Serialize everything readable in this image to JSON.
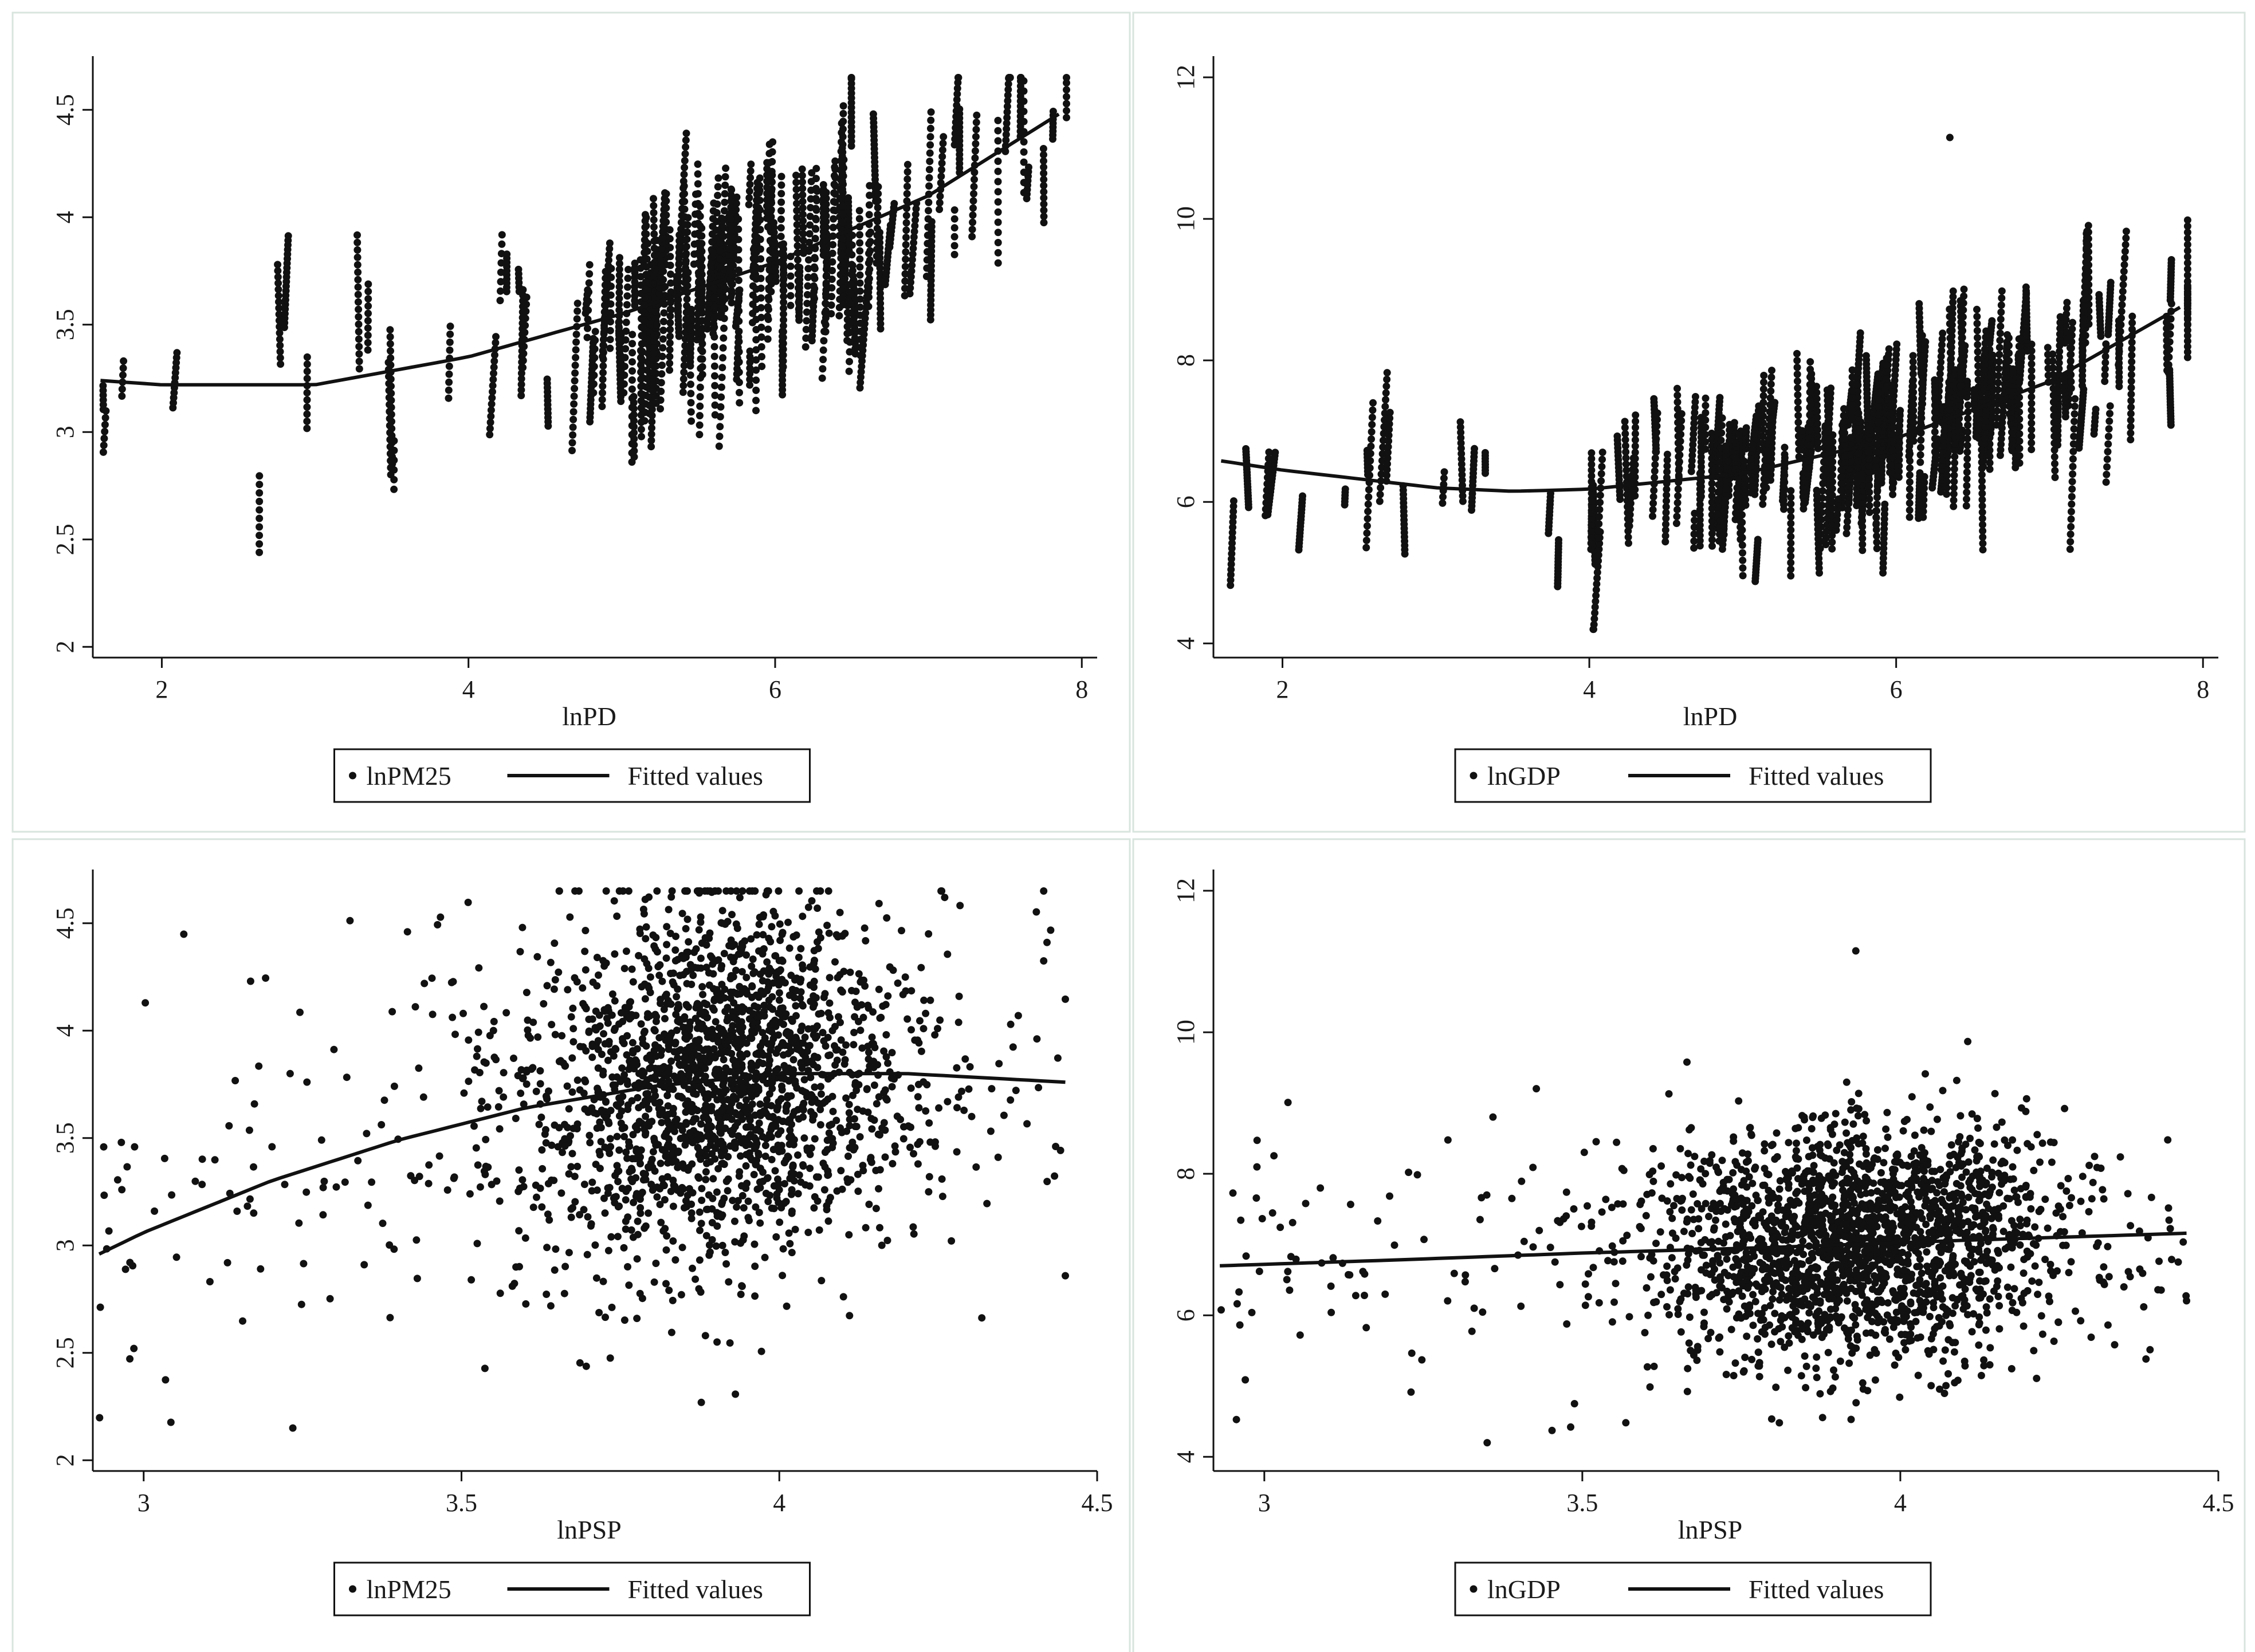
{
  "figure": {
    "colors": {
      "background": "#ffffff",
      "ink": "#111111",
      "panel_border": "#d8e4de"
    }
  },
  "chart_data": [
    {
      "id": "top-left",
      "type": "scatter",
      "xlabel": "lnPD",
      "ylabel": "",
      "xlim": [
        1.55,
        8.1
      ],
      "ylim": [
        1.95,
        4.75
      ],
      "xticks": [
        2,
        4,
        6,
        8
      ],
      "xtick_labels": [
        "2",
        "4",
        "6",
        "8"
      ],
      "yticks": [
        2,
        2.5,
        3,
        3.5,
        4,
        4.5
      ],
      "ytick_labels": [
        "2",
        "2.5",
        "3",
        "3.5",
        "4",
        "4.5"
      ],
      "legend": {
        "position": "bottom-center",
        "scatter_label": "lnPM25",
        "line_label": "Fitted values"
      },
      "fit": {
        "kind": "quadratic",
        "x": [
          1.6,
          2.0,
          3.0,
          4.0,
          5.0,
          6.0,
          7.0,
          7.85
        ],
        "y": [
          3.24,
          3.22,
          3.22,
          3.35,
          3.55,
          3.79,
          4.1,
          4.48
        ]
      },
      "scatter": {
        "count": 2200,
        "seed": 11,
        "x_range": [
          1.6,
          7.9
        ],
        "y_range": [
          2.15,
          4.65
        ],
        "pattern": "vertical-streaks",
        "x_center": 5.9,
        "x_spread": 0.8,
        "y_spread": 0.33
      }
    },
    {
      "id": "top-right",
      "type": "scatter",
      "xlabel": "lnPD",
      "ylabel": "",
      "xlim": [
        1.55,
        8.1
      ],
      "ylim": [
        3.8,
        12.3
      ],
      "xticks": [
        2,
        4,
        6,
        8
      ],
      "xtick_labels": [
        "2",
        "4",
        "6",
        "8"
      ],
      "yticks": [
        4,
        6,
        8,
        10,
        12
      ],
      "ytick_labels": [
        "4",
        "6",
        "8",
        "10",
        "12"
      ],
      "legend": {
        "position": "bottom-center",
        "scatter_label": "lnGDP",
        "line_label": "Fitted values"
      },
      "fit": {
        "kind": "quadratic",
        "x": [
          1.6,
          2.0,
          3.0,
          3.5,
          4.0,
          5.0,
          6.0,
          7.0,
          7.85
        ],
        "y": [
          6.58,
          6.45,
          6.2,
          6.15,
          6.18,
          6.4,
          6.9,
          7.7,
          8.75
        ]
      },
      "scatter": {
        "count": 3000,
        "seed": 23,
        "x_range": [
          1.6,
          7.9
        ],
        "y_range": [
          4.2,
          10.1
        ],
        "pattern": "vertical-streaks",
        "x_center": 5.9,
        "x_spread": 0.85,
        "y_spread": 0.75,
        "outlier": [
          6.35,
          11.15
        ]
      }
    },
    {
      "id": "bottom-left",
      "type": "scatter",
      "xlabel": "lnPSP",
      "ylabel": "",
      "xlim": [
        2.92,
        4.5
      ],
      "ylim": [
        1.95,
        4.75
      ],
      "xticks": [
        3,
        3.5,
        4,
        4.5
      ],
      "xtick_labels": [
        "3",
        "3.5",
        "4",
        "4.5"
      ],
      "yticks": [
        2,
        2.5,
        3,
        3.5,
        4,
        4.5
      ],
      "ytick_labels": [
        "2",
        "2.5",
        "3",
        "3.5",
        "4",
        "4.5"
      ],
      "legend": {
        "position": "bottom-center",
        "scatter_label": "lnPM25",
        "line_label": "Fitted values"
      },
      "fit": {
        "kind": "quadratic",
        "x": [
          2.93,
          3.0,
          3.2,
          3.4,
          3.6,
          3.8,
          4.0,
          4.2,
          4.45
        ],
        "y": [
          2.96,
          3.06,
          3.3,
          3.49,
          3.64,
          3.74,
          3.8,
          3.8,
          3.76
        ]
      },
      "scatter": {
        "count": 2200,
        "seed": 37,
        "x_range": [
          2.93,
          4.45
        ],
        "y_range": [
          2.15,
          4.65
        ],
        "pattern": "cloud",
        "x_center": 3.9,
        "x_spread": 0.15,
        "y_spread": 0.42
      }
    },
    {
      "id": "bottom-right",
      "type": "scatter",
      "xlabel": "lnPSP",
      "ylabel": "",
      "xlim": [
        2.92,
        4.5
      ],
      "ylim": [
        3.8,
        12.3
      ],
      "xticks": [
        3,
        3.5,
        4,
        4.5
      ],
      "xtick_labels": [
        "3",
        "3.5",
        "4",
        "4.5"
      ],
      "yticks": [
        4,
        6,
        8,
        10,
        12
      ],
      "ytick_labels": [
        "4",
        "6",
        "8",
        "10",
        "12"
      ],
      "legend": {
        "position": "bottom-center",
        "scatter_label": "lnGDP",
        "line_label": "Fitted values"
      },
      "fit": {
        "kind": "quadratic",
        "x": [
          2.93,
          3.2,
          3.5,
          3.8,
          4.1,
          4.45
        ],
        "y": [
          6.7,
          6.78,
          6.88,
          6.96,
          7.06,
          7.16
        ]
      },
      "scatter": {
        "count": 2200,
        "seed": 53,
        "x_range": [
          2.93,
          4.45
        ],
        "y_range": [
          4.2,
          10.1
        ],
        "pattern": "cloud",
        "x_center": 3.93,
        "x_spread": 0.16,
        "y_spread": 0.85,
        "outlier": [
          3.93,
          11.15
        ]
      }
    }
  ]
}
